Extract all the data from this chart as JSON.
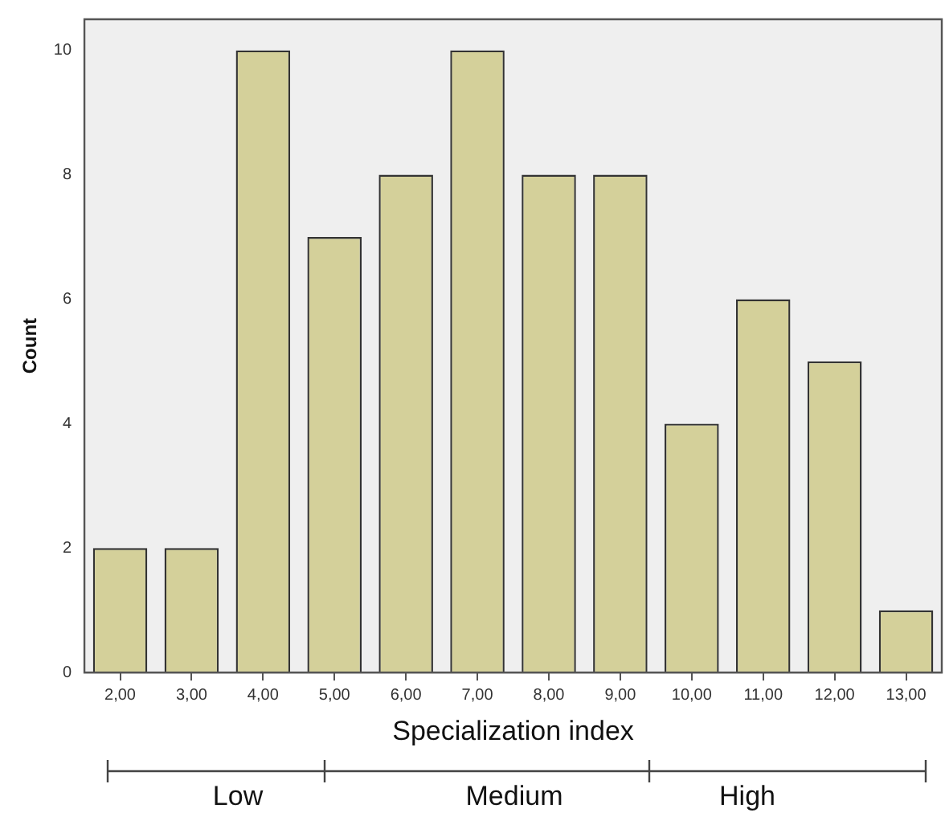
{
  "chart_data": {
    "type": "bar",
    "xlabel": "Specialization index",
    "ylabel": "Count",
    "categories": [
      "2,00",
      "3,00",
      "4,00",
      "5,00",
      "6,00",
      "7,00",
      "8,00",
      "9,00",
      "10,00",
      "11,00",
      "12,00",
      "13,00"
    ],
    "values": [
      2,
      2,
      10,
      7,
      8,
      10,
      8,
      8,
      4,
      6,
      5,
      1
    ],
    "color": "#d4d09a",
    "ylim": [
      0,
      10.5
    ],
    "yticks": [
      0,
      2,
      4,
      6,
      8,
      10
    ],
    "grid": false,
    "legend": false,
    "annotations": [
      "Low",
      "Medium",
      "High"
    ]
  }
}
